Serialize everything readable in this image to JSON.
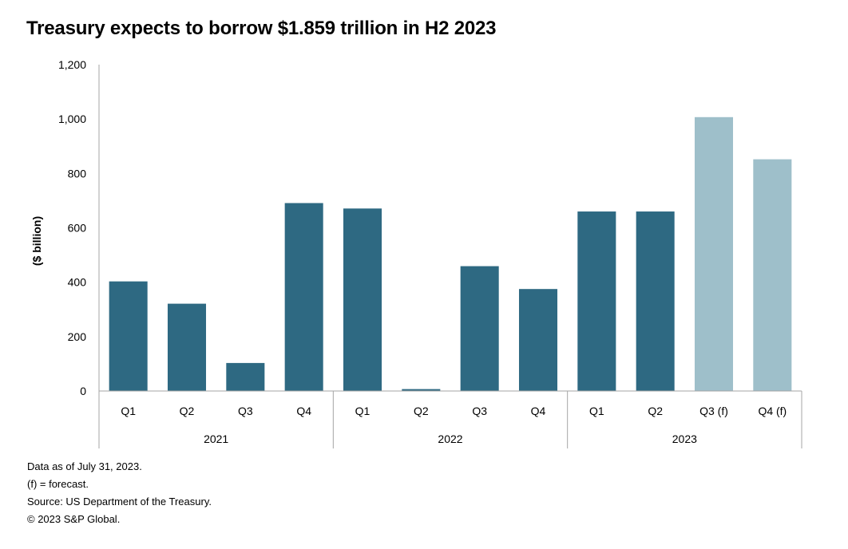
{
  "chart_data": {
    "type": "bar",
    "title": "Treasury expects to borrow $1.859 trillion in H2 2023",
    "ylabel": "($ billion)",
    "xlabel": "",
    "ylim": [
      0,
      1200
    ],
    "yticks": [
      0,
      200,
      400,
      600,
      800,
      1000,
      1200
    ],
    "ytick_labels": [
      "0",
      "200",
      "400",
      "600",
      "800",
      "1,000",
      "1,200"
    ],
    "categories": [
      "Q1",
      "Q2",
      "Q3",
      "Q4",
      "Q1",
      "Q2",
      "Q3",
      "Q4",
      "Q1",
      "Q2",
      "Q3 (f)",
      "Q4 (f)"
    ],
    "groups": [
      {
        "label": "2021",
        "count": 4
      },
      {
        "label": "2022",
        "count": 4
      },
      {
        "label": "2023",
        "count": 4
      }
    ],
    "values": [
      403,
      321,
      103,
      691,
      671,
      7,
      459,
      375,
      660,
      660,
      1007,
      852
    ],
    "forecast": [
      false,
      false,
      false,
      false,
      false,
      false,
      false,
      false,
      false,
      false,
      true,
      true
    ],
    "colors": {
      "actual": "#2e6982",
      "forecast": "#9ebfca",
      "axis": "#a6a6a6"
    },
    "grid": false,
    "legend": "none"
  },
  "notes": [
    "Data as of July 31, 2023.",
    "(f) = forecast.",
    "Source: US Department of the Treasury.",
    "© 2023 S&P Global."
  ]
}
